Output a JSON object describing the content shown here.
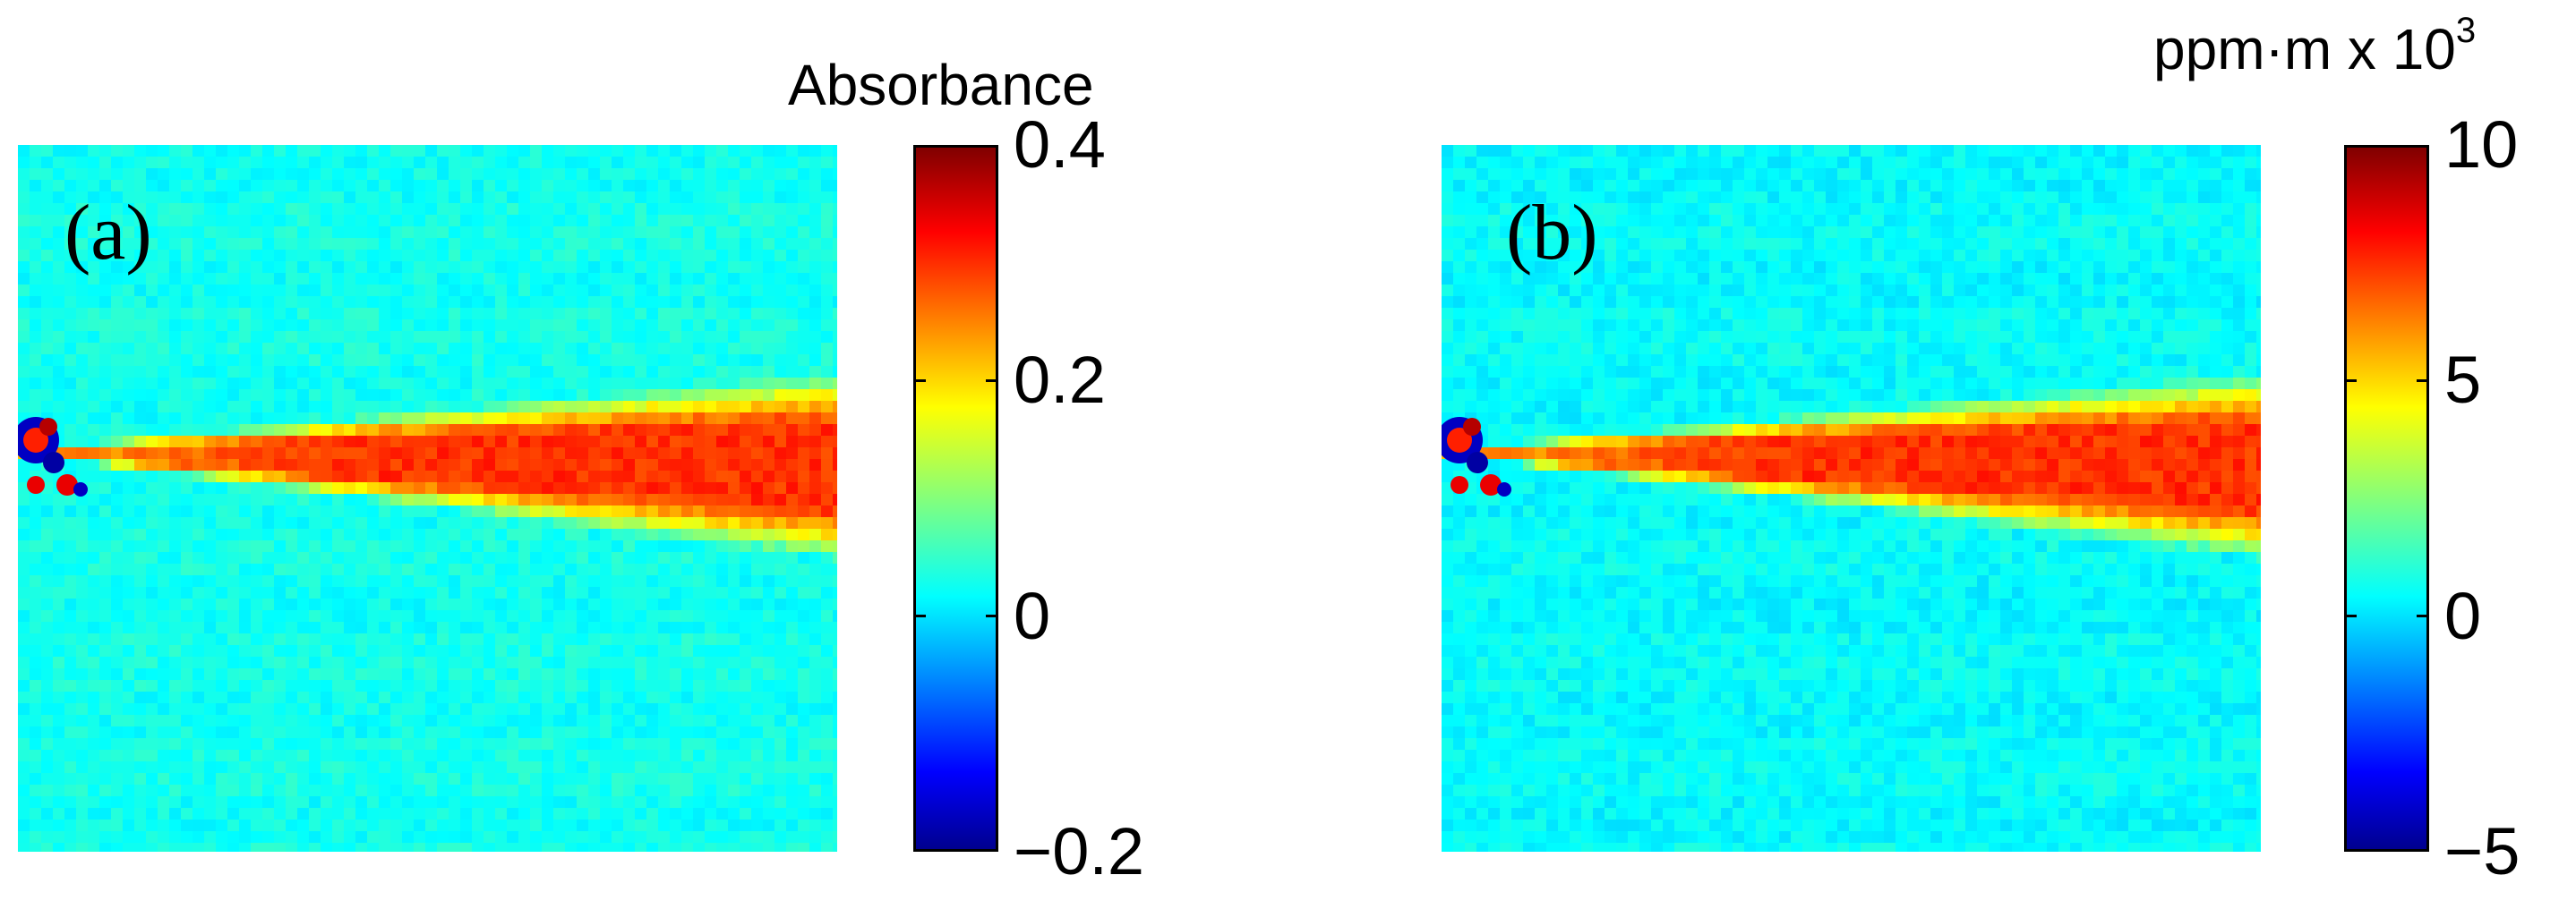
{
  "chart_data": [
    {
      "type": "heatmap",
      "panel_label": "(a)",
      "colorbar_title": "Absorbance",
      "colorbar_title_superscript": "",
      "colorbar_range": [
        -0.2,
        0.4
      ],
      "colorbar_ticks": [
        {
          "value": 0.4,
          "label": "0.4"
        },
        {
          "value": 0.2,
          "label": "0.2"
        },
        {
          "value": 0,
          "label": "0"
        },
        {
          "value": -0.2,
          "label": "−0.2"
        }
      ],
      "colormap": "jet",
      "background_level": 0.03,
      "plume_peak_level": 0.3,
      "description_values": {
        "plume_source": "left edge, ~45% down",
        "plume_direction": "right, widening"
      }
    },
    {
      "type": "heatmap",
      "panel_label": "(b)",
      "colorbar_title": "ppm·m x 10",
      "colorbar_title_superscript": "3",
      "colorbar_range": [
        -5,
        10
      ],
      "colorbar_ticks": [
        {
          "value": 10,
          "label": "10"
        },
        {
          "value": 5,
          "label": "5"
        },
        {
          "value": 0,
          "label": "0"
        },
        {
          "value": -5,
          "label": "−5"
        }
      ],
      "colormap": "jet",
      "background_level": 0.5,
      "plume_peak_level": 7.5,
      "description_values": {
        "plume_source": "left edge, ~45% down",
        "plume_direction": "right, widening"
      }
    }
  ],
  "colors": {
    "jet": [
      "#00008f",
      "#0000ff",
      "#00ffff",
      "#ffff00",
      "#ff0000",
      "#800000"
    ]
  }
}
